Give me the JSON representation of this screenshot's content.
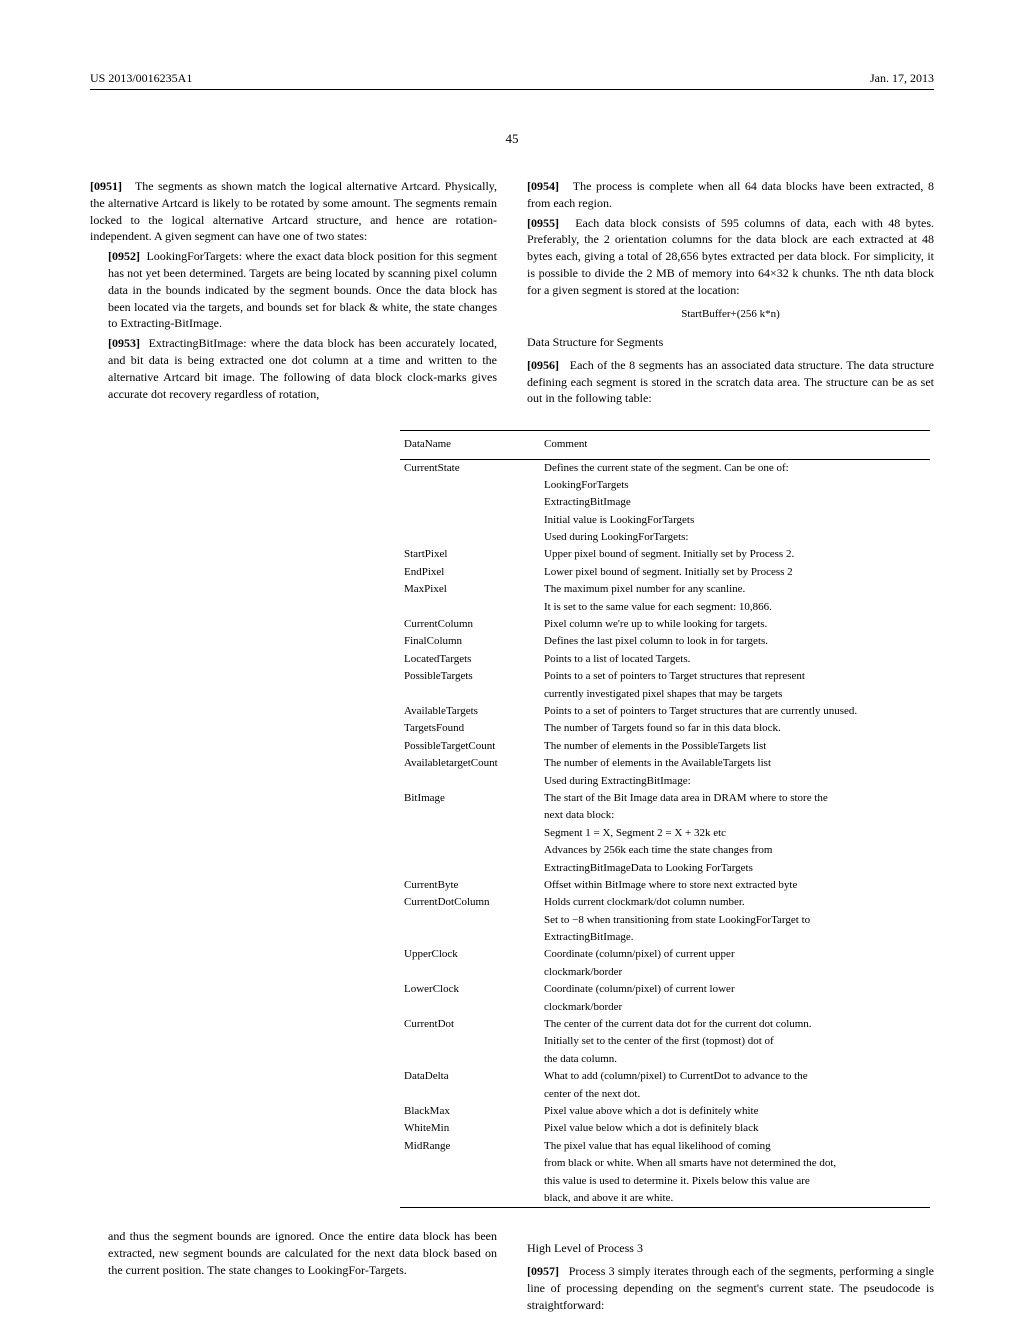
{
  "header": {
    "docId": "US 2013/0016235A1",
    "date": "Jan. 17, 2013"
  },
  "pageNumber": "45",
  "leftColumn": {
    "para1": {
      "num": "[0951]",
      "text": "The segments as shown match the logical alternative Artcard. Physically, the alternative Artcard is likely to be rotated by some amount. The segments remain locked to the logical alternative Artcard structure, and hence are rotation-independent. A given segment can have one of two states:"
    },
    "list1": {
      "num": "[0952]",
      "text": "LookingForTargets: where the exact data block position for this segment has not yet been determined. Targets are being located by scanning pixel column data in the bounds indicated by the segment bounds. Once the data block has been located via the targets, and bounds set for black & white, the state changes to Extracting-BitImage."
    },
    "list2": {
      "num": "[0953]",
      "text": "ExtractingBitImage: where the data block has been accurately located, and bit data is being extracted one dot column at a time and written to the alternative Artcard bit image. The following of data block clock-marks gives accurate dot recovery regardless of rotation,"
    }
  },
  "rightColumn": {
    "para1": {
      "num": "[0954]",
      "text": "The process is complete when all 64 data blocks have been extracted, 8 from each region."
    },
    "para2": {
      "num": "[0955]",
      "text": "Each data block consists of 595 columns of data, each with 48 bytes. Preferably, the 2 orientation columns for the data block are each extracted at 48 bytes each, giving a total of 28,656 bytes extracted per data block. For simplicity, it is possible to divide the 2 MB of memory into 64×32 k chunks. The nth data block for a given segment is stored at the location:"
    },
    "formula": "StartBuffer+(256 k*n)",
    "sectionTitle": "Data Structure for Segments",
    "para3": {
      "num": "[0956]",
      "text": "Each of the 8 segments has an associated data structure. The data structure defining each segment is stored in the scratch data area. The structure can be as set out in the following table:"
    }
  },
  "table": {
    "headers": [
      "DataName",
      "Comment"
    ],
    "rows": [
      [
        "CurrentState",
        "Defines the current state of the segment. Can be one of:"
      ],
      [
        "",
        "LookingForTargets"
      ],
      [
        "",
        "ExtractingBitImage"
      ],
      [
        "",
        "Initial value is LookingForTargets"
      ],
      [
        "",
        "Used during LookingForTargets:"
      ],
      [
        "StartPixel",
        "Upper pixel bound of segment. Initially set by Process 2."
      ],
      [
        "EndPixel",
        "Lower pixel bound of segment. Initially set by Process 2"
      ],
      [
        "MaxPixel",
        "The maximum pixel number for any scanline."
      ],
      [
        "",
        "It is set to the same value for each segment: 10,866."
      ],
      [
        "CurrentColumn",
        "Pixel column we're up to while looking for targets."
      ],
      [
        "FinalColumn",
        "Defines the last pixel column to look in for targets."
      ],
      [
        "LocatedTargets",
        "Points to a list of located Targets."
      ],
      [
        "PossibleTargets",
        "Points to a set of pointers to Target structures that represent"
      ],
      [
        "",
        "currently investigated pixel shapes that may be targets"
      ],
      [
        "AvailableTargets",
        "Points to a set of pointers to Target structures that are currently unused."
      ],
      [
        "TargetsFound",
        "The number of Targets found so far in this data block."
      ],
      [
        "PossibleTargetCount",
        "The number of elements in the PossibleTargets list"
      ],
      [
        "AvailabletargetCount",
        "The number of elements in the AvailableTargets list"
      ],
      [
        "",
        "Used during ExtractingBitImage:"
      ],
      [
        "BitImage",
        "The start of the Bit Image data area in DRAM where to store the"
      ],
      [
        "",
        "next data block:"
      ],
      [
        "",
        "Segment 1 = X, Segment 2 = X + 32k etc"
      ],
      [
        "",
        "Advances by 256k each time the state changes from"
      ],
      [
        "",
        "ExtractingBitImageData to Looking ForTargets"
      ],
      [
        "CurrentByte",
        "Offset within BitImage where to store next extracted byte"
      ],
      [
        "CurrentDotColumn",
        "Holds current clockmark/dot column number."
      ],
      [
        "",
        "Set to −8 when transitioning from state LookingForTarget to"
      ],
      [
        "",
        "ExtractingBitImage."
      ],
      [
        "UpperClock",
        "Coordinate (column/pixel) of current upper"
      ],
      [
        "",
        "clockmark/border"
      ],
      [
        "LowerClock",
        "Coordinate (column/pixel) of current lower"
      ],
      [
        "",
        "clockmark/border"
      ],
      [
        "CurrentDot",
        "The center of the current data dot for the current dot column."
      ],
      [
        "",
        "Initially set to the center of the first (topmost) dot of"
      ],
      [
        "",
        "the data column."
      ],
      [
        "DataDelta",
        "What to add (column/pixel) to CurrentDot to advance to the"
      ],
      [
        "",
        "center of the next dot."
      ],
      [
        "BlackMax",
        "Pixel value above which a dot is definitely white"
      ],
      [
        "WhiteMin",
        "Pixel value below which a dot is definitely black"
      ],
      [
        "MidRange",
        "The pixel value that has equal likelihood of coming"
      ],
      [
        "",
        "from black or white. When all smarts have not determined the dot,"
      ],
      [
        "",
        "this value is used to determine it. Pixels below this value are"
      ],
      [
        "",
        "black, and above it are white."
      ]
    ]
  },
  "bottom": {
    "leftText": "and thus the segment bounds are ignored. Once the entire data block has been extracted, new segment bounds are calculated for the next data block based on the current position. The state changes to LookingFor-Targets.",
    "rightTitle": "High Level of Process 3",
    "rightPara": {
      "num": "[0957]",
      "text": "Process 3 simply iterates through each of the segments, performing a single line of processing depending on the segment's current state. The pseudocode is straightforward:"
    }
  }
}
